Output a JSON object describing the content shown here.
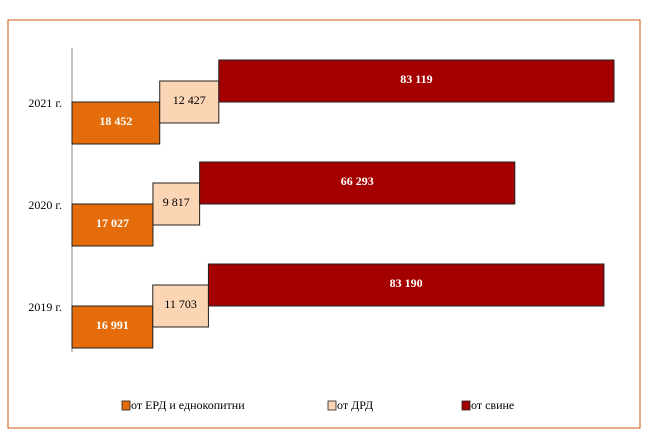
{
  "chart_data": {
    "type": "stepped-bar",
    "categories": [
      "2021 г.",
      "2020 г.",
      "2019 г."
    ],
    "series": [
      {
        "name": "от ЕРД и еднокопитни",
        "color": "#e46c0a",
        "label_color": "#ffffff",
        "values": [
          18452,
          17027,
          16991
        ],
        "value_labels": [
          "18 452",
          "17 027",
          "16 991"
        ]
      },
      {
        "name": "от ДРД",
        "color": "#fcd5b5",
        "label_color": "#000000",
        "values": [
          12427,
          9817,
          11703
        ],
        "value_labels": [
          "12 427",
          "9 817",
          "11 703"
        ]
      },
      {
        "name": "от свине",
        "color": "#a50000",
        "label_color": "#ffffff",
        "values": [
          83119,
          66293,
          83190
        ],
        "value_labels": [
          "83 119",
          "66 293",
          "83 190"
        ]
      }
    ],
    "legend": "bottom"
  }
}
